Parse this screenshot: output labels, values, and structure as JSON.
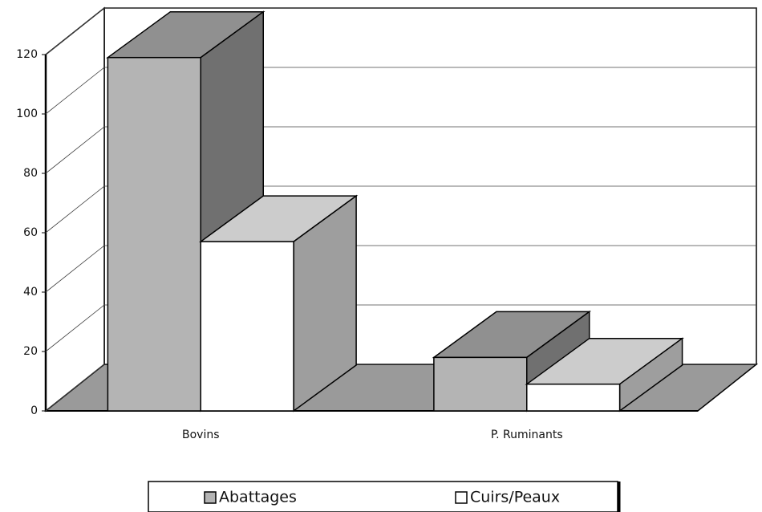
{
  "chart_data": {
    "type": "bar3d",
    "categories": [
      "Bovins",
      "P. Ruminants"
    ],
    "series": [
      {
        "name": "Abattages",
        "color": "#b4b4b4",
        "values": [
          119,
          18
        ]
      },
      {
        "name": "Cuirs/Peaux",
        "color": "#ffffff",
        "values": [
          57,
          9
        ]
      }
    ],
    "ylim": [
      0,
      120
    ],
    "yticks": [
      0,
      20,
      40,
      60,
      80,
      100,
      120
    ],
    "grid": true,
    "legend": "bottom"
  }
}
